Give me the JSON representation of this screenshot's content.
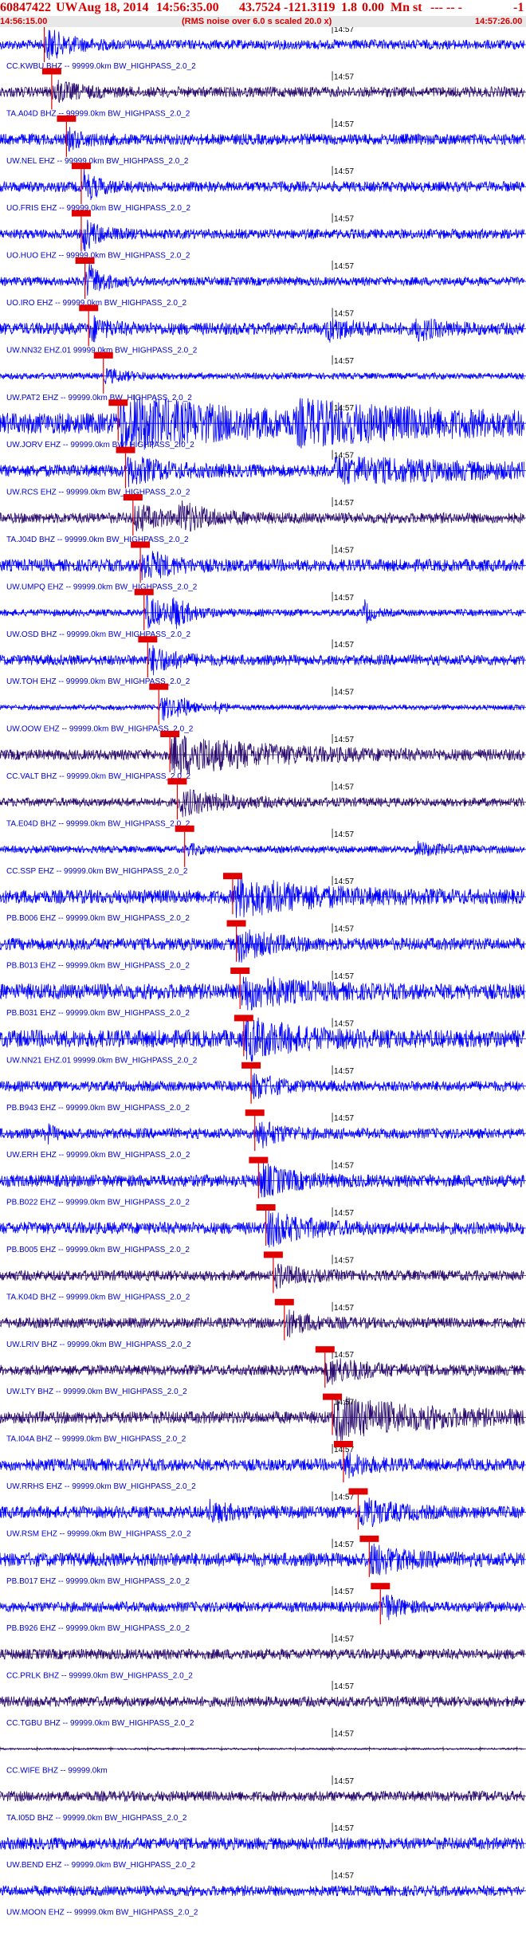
{
  "header": {
    "event_id": "60847422",
    "network": "UW",
    "date": "Aug 18, 2014",
    "time": "14:56:35.00",
    "lat": "43.7524",
    "lon": "-121.3119",
    "depth": "1.8",
    "mag": "0.00",
    "mag_type": "Mn",
    "st": "st",
    "dashes": "---  -- -",
    "flag": "-1",
    "start_time": "14:56:15.00",
    "rms_note": "(RMS noise over 6.0 s scaled 20.0 x)",
    "end_time": "14:57:26.00"
  },
  "colors": {
    "header_text": "#d40000",
    "trace_blue": "#0000ff",
    "trace_dark": "#2a0a6e",
    "label_blue": "#0000cc",
    "phase_pick": "#e00000",
    "timeline": "#000000",
    "gridlines": "#000000"
  },
  "chart_data": {
    "type": "seismogram",
    "time_start": "14:56:15.00",
    "time_end": "14:57:26.00",
    "minute_tick_label": "14:57",
    "minute_tick_seconds_from_start": 45,
    "duration_seconds": 71,
    "filter": "BW_HIGHPASS_2.0_2",
    "stations": [
      {
        "label": "CC.KWBU BHZ -- 99999.0km BW_HIGHPASS_2.0_2",
        "pick_s": 6.0,
        "burst": [
          {
            "t": 6,
            "w": 3,
            "amp": 0.9
          }
        ],
        "noise": 0.28,
        "color": "blue"
      },
      {
        "label": "TA.A04D BHZ -- 99999.0km BW_HIGHPASS_2.0_2",
        "pick_s": 7.0,
        "burst": [
          {
            "t": 7,
            "w": 3,
            "amp": 0.6
          }
        ],
        "noise": 0.3,
        "color": "dark"
      },
      {
        "label": "UW.NEL EHZ -- 99999.0km BW_HIGHPASS_2.0_2",
        "pick_s": 9.0,
        "burst": [
          {
            "t": 9,
            "w": 2,
            "amp": 0.5
          }
        ],
        "noise": 0.32,
        "color": "blue"
      },
      {
        "label": "UO.FRIS EHZ -- 99999.0km BW_HIGHPASS_2.0_2",
        "pick_s": 11.0,
        "burst": [
          {
            "t": 11,
            "w": 2,
            "amp": 0.9
          }
        ],
        "noise": 0.3,
        "color": "blue"
      },
      {
        "label": "UO.HUO EHZ -- 99999.0km BW_HIGHPASS_2.0_2",
        "pick_s": 11.0,
        "burst": [
          {
            "t": 11,
            "w": 2,
            "amp": 1.0
          }
        ],
        "noise": 0.28,
        "color": "blue"
      },
      {
        "label": "UO.IRO EHZ -- 99999.0km BW_HIGHPASS_2.0_2",
        "pick_s": 11.5,
        "burst": [
          {
            "t": 11.5,
            "w": 2,
            "amp": 1.1
          }
        ],
        "noise": 0.25,
        "color": "blue"
      },
      {
        "label": "UW.NN32 EHZ.01 99999.0km BW_HIGHPASS_2.0_2",
        "pick_s": 12.0,
        "burst": [
          {
            "t": 12,
            "w": 2,
            "amp": 0.7
          },
          {
            "t": 44,
            "w": 3,
            "amp": 0.6
          },
          {
            "t": 56,
            "w": 3,
            "amp": 0.55
          }
        ],
        "noise": 0.35,
        "color": "blue"
      },
      {
        "label": "UW.PAT2 EHZ -- 99999.0km BW_HIGHPASS_2.0_2",
        "pick_s": 14.0,
        "burst": [
          {
            "t": 14,
            "w": 3,
            "amp": 0.4
          }
        ],
        "noise": 0.18,
        "color": "blue"
      },
      {
        "label": "UW.JORV EHZ -- 99999.0km BW_HIGHPASS_2.0_2",
        "pick_s": 16.0,
        "burst": [
          {
            "t": 16,
            "w": 14,
            "amp": 1.3
          },
          {
            "t": 40,
            "w": 20,
            "amp": 0.7
          }
        ],
        "noise": 0.6,
        "color": "blue"
      },
      {
        "label": "UW.RCS EHZ -- 99999.0km BW_HIGHPASS_2.0_2",
        "pick_s": 17.0,
        "burst": [
          {
            "t": 17,
            "w": 5,
            "amp": 0.7
          },
          {
            "t": 45,
            "w": 20,
            "amp": 0.6
          }
        ],
        "noise": 0.35,
        "color": "blue"
      },
      {
        "label": "TA.J04D BHZ -- 99999.0km BW_HIGHPASS_2.0_2",
        "pick_s": 18.0,
        "burst": [
          {
            "t": 18,
            "w": 3,
            "amp": 0.8
          },
          {
            "t": 24,
            "w": 4,
            "amp": 0.8
          }
        ],
        "noise": 0.3,
        "color": "dark"
      },
      {
        "label": "UW.UMPQ EHZ -- 99999.0km BW_HIGHPASS_2.0_2",
        "pick_s": 19.0,
        "burst": [
          {
            "t": 19,
            "w": 3,
            "amp": 1.0
          }
        ],
        "noise": 0.35,
        "color": "blue"
      },
      {
        "label": "UW.OSD BHZ -- 99999.0km BW_HIGHPASS_2.0_2",
        "pick_s": 19.5,
        "burst": [
          {
            "t": 19.5,
            "w": 3,
            "amp": 1.0
          },
          {
            "t": 23,
            "w": 2,
            "amp": 0.8
          },
          {
            "t": 49,
            "w": 1,
            "amp": 0.9
          }
        ],
        "noise": 0.2,
        "color": "blue"
      },
      {
        "label": "UW.TOH EHZ -- 99999.0km BW_HIGHPASS_2.0_2",
        "pick_s": 20.0,
        "burst": [
          {
            "t": 20,
            "w": 3,
            "amp": 0.8
          }
        ],
        "noise": 0.3,
        "color": "blue"
      },
      {
        "label": "UW.OOW EHZ -- 99999.0km BW_HIGHPASS_2.0_2",
        "pick_s": 21.5,
        "burst": [
          {
            "t": 21.5,
            "w": 2,
            "amp": 0.9
          },
          {
            "t": 24,
            "w": 1,
            "amp": 0.8
          },
          {
            "t": 29,
            "w": 1,
            "amp": 0.5
          }
        ],
        "noise": 0.15,
        "color": "blue"
      },
      {
        "label": "CC.VALT BHZ -- 99999.0km BW_HIGHPASS_2.0_2",
        "pick_s": 23.0,
        "burst": [
          {
            "t": 23,
            "w": 12,
            "amp": 1.1
          }
        ],
        "noise": 0.3,
        "color": "dark"
      },
      {
        "label": "TA.E04D BHZ -- 99999.0km BW_HIGHPASS_2.0_2",
        "pick_s": 24.0,
        "burst": [
          {
            "t": 24,
            "w": 6,
            "amp": 0.7
          }
        ],
        "noise": 0.25,
        "color": "dark"
      },
      {
        "label": "CC.SSP EHZ -- 99999.0km BW_HIGHPASS_2.0_2",
        "pick_s": 25.0,
        "burst": [
          {
            "t": 25,
            "w": 2,
            "amp": 0.3
          },
          {
            "t": 56,
            "w": 4,
            "amp": 0.35
          }
        ],
        "noise": 0.2,
        "color": "blue"
      },
      {
        "label": "PB.B006 EHZ -- 99999.0km BW_HIGHPASS_2.0_2",
        "pick_s": 31.5,
        "burst": [
          {
            "t": 31.5,
            "w": 10,
            "amp": 1.0
          }
        ],
        "noise": 0.4,
        "color": "blue"
      },
      {
        "label": "PB.B013 EHZ -- 99999.0km BW_HIGHPASS_2.0_2",
        "pick_s": 32.0,
        "burst": [
          {
            "t": 32,
            "w": 4,
            "amp": 0.9
          }
        ],
        "noise": 0.35,
        "color": "blue"
      },
      {
        "label": "PB.B031 EHZ -- 99999.0km BW_HIGHPASS_2.0_2",
        "pick_s": 32.5,
        "burst": [
          {
            "t": 32.5,
            "w": 6,
            "amp": 0.9
          }
        ],
        "noise": 0.45,
        "color": "blue"
      },
      {
        "label": "UW.NN21 EHZ.01 99999.0km BW_HIGHPASS_2.0_2",
        "pick_s": 33.0,
        "burst": [
          {
            "t": 33,
            "w": 6,
            "amp": 1.0
          }
        ],
        "noise": 0.5,
        "color": "blue"
      },
      {
        "label": "PB.B943 EHZ -- 99999.0km BW_HIGHPASS_2.0_2",
        "pick_s": 34.0,
        "burst": [
          {
            "t": 34,
            "w": 3,
            "amp": 0.7
          }
        ],
        "noise": 0.3,
        "color": "blue"
      },
      {
        "label": "UW.ERH EHZ -- 99999.0km BW_HIGHPASS_2.0_2",
        "pick_s": 34.5,
        "burst": [
          {
            "t": 34.5,
            "w": 3,
            "amp": 0.8
          },
          {
            "t": 6,
            "w": 1,
            "amp": 0.6
          }
        ],
        "noise": 0.3,
        "color": "blue"
      },
      {
        "label": "PB.B022 EHZ -- 99999.0km BW_HIGHPASS_2.0_2",
        "pick_s": 35.0,
        "burst": [
          {
            "t": 35,
            "w": 4,
            "amp": 0.9
          }
        ],
        "noise": 0.35,
        "color": "blue"
      },
      {
        "label": "PB.B005 EHZ -- 99999.0km BW_HIGHPASS_2.0_2",
        "pick_s": 36.0,
        "burst": [
          {
            "t": 36,
            "w": 5,
            "amp": 0.9
          }
        ],
        "noise": 0.35,
        "color": "blue"
      },
      {
        "label": "TA.K04D BHZ -- 99999.0km BW_HIGHPASS_2.0_2",
        "pick_s": 37.0,
        "burst": [
          {
            "t": 37,
            "w": 3,
            "amp": 0.6
          }
        ],
        "noise": 0.3,
        "color": "dark"
      },
      {
        "label": "UW.LRIV BHZ -- 99999.0km BW_HIGHPASS_2.0_2",
        "pick_s": 38.5,
        "burst": [
          {
            "t": 38.5,
            "w": 3,
            "amp": 0.7
          }
        ],
        "noise": 0.3,
        "color": "dark"
      },
      {
        "label": "UW.LTY BHZ -- 99999.0km BW_HIGHPASS_2.0_2",
        "pick_s": 44.0,
        "burst": [
          {
            "t": 44,
            "w": 5,
            "amp": 0.7
          }
        ],
        "noise": 0.3,
        "color": "dark"
      },
      {
        "label": "TA.I04A BHZ -- 99999.0km BW_HIGHPASS_2.0_2",
        "pick_s": 45.0,
        "burst": [
          {
            "t": 45,
            "w": 12,
            "amp": 1.1
          }
        ],
        "noise": 0.35,
        "color": "dark"
      },
      {
        "label": "UW.RRHS EHZ -- 99999.0km BW_HIGHPASS_2.0_2",
        "pick_s": 46.5,
        "burst": [
          {
            "t": 46.5,
            "w": 3,
            "amp": 0.6
          }
        ],
        "noise": 0.35,
        "color": "blue"
      },
      {
        "label": "UW.RSM EHZ -- 99999.0km BW_HIGHPASS_2.0_2",
        "pick_s": 48.5,
        "burst": [
          {
            "t": 48.5,
            "w": 4,
            "amp": 0.8
          },
          {
            "t": 28,
            "w": 3,
            "amp": 0.5
          }
        ],
        "noise": 0.35,
        "color": "blue"
      },
      {
        "label": "PB.B017 EHZ -- 99999.0km BW_HIGHPASS_2.0_2",
        "pick_s": 50.0,
        "burst": [
          {
            "t": 50,
            "w": 4,
            "amp": 0.8
          }
        ],
        "noise": 0.4,
        "color": "blue"
      },
      {
        "label": "PB.B926 EHZ -- 99999.0km BW_HIGHPASS_2.0_2",
        "pick_s": 51.5,
        "burst": [
          {
            "t": 51.5,
            "w": 2,
            "amp": 0.9
          }
        ],
        "noise": 0.3,
        "color": "blue"
      },
      {
        "label": "CC.PRLK BHZ -- 99999.0km BW_HIGHPASS_2.0_2",
        "pick_s": null,
        "burst": [],
        "noise": 0.3,
        "color": "dark"
      },
      {
        "label": "CC.TGBU BHZ -- 99999.0km BW_HIGHPASS_2.0_2",
        "pick_s": null,
        "burst": [],
        "noise": 0.3,
        "color": "dark"
      },
      {
        "label": "CC.WIFE BHZ -- 99999.0km",
        "pick_s": null,
        "burst": [],
        "noise": 0.05,
        "color": "dark"
      },
      {
        "label": "TA.I05D BHZ -- 99999.0km BW_HIGHPASS_2.0_2",
        "pick_s": null,
        "burst": [],
        "noise": 0.3,
        "color": "dark"
      },
      {
        "label": "UW.BEND EHZ -- 99999.0km BW_HIGHPASS_2.0_2",
        "pick_s": null,
        "burst": [],
        "noise": 0.35,
        "color": "blue"
      },
      {
        "label": "UW.MOON EHZ -- 99999.0km BW_HIGHPASS_2.0_2",
        "pick_s": null,
        "burst": [],
        "noise": 0.3,
        "color": "blue"
      }
    ]
  }
}
